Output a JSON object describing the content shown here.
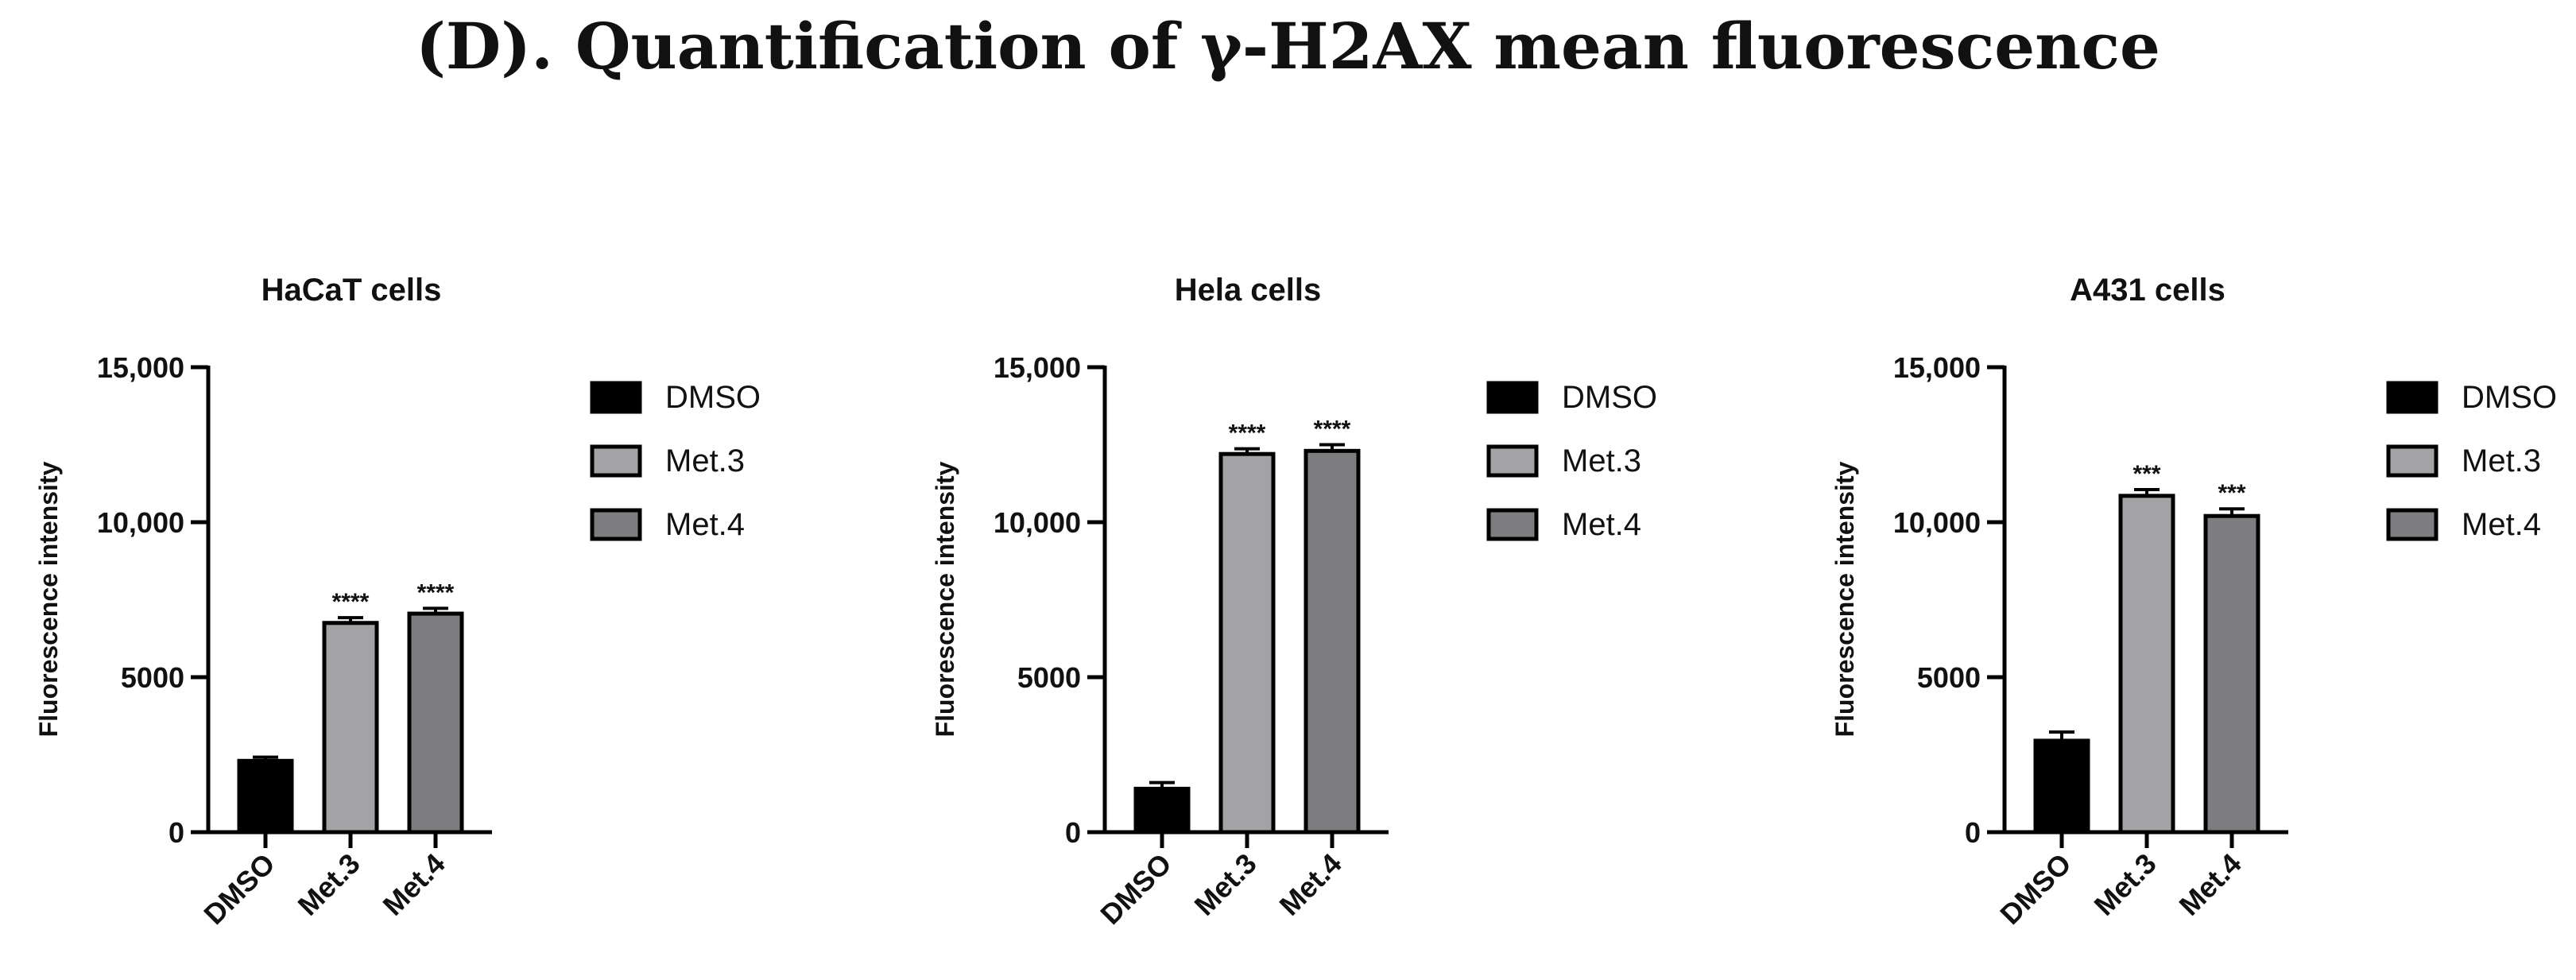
{
  "figure_title": "(D). Quantification of γ-H2AX mean fluorescence",
  "chart_data": [
    {
      "type": "bar",
      "title": "HaCaT cells",
      "ylabel": "Fluorescence intensity",
      "xlabel": "",
      "categories": [
        "DMSO",
        "Met.3",
        "Met.4"
      ],
      "values": [
        2300,
        6750,
        7050
      ],
      "errors": [
        120,
        170,
        170
      ],
      "annotations": [
        "",
        "****",
        "****"
      ],
      "colors": [
        "#000000",
        "#a3a3a5",
        "#7d7d7f"
      ],
      "ylim": [
        0,
        15000
      ],
      "yticks": [
        0,
        5000,
        10000,
        15000
      ],
      "ytick_labels": [
        "0",
        "5000",
        "10,000",
        "15,000"
      ],
      "legend": {
        "placement": "right",
        "entries": [
          "DMSO",
          "Met.3",
          "Met.4"
        ]
      },
      "grid": false
    },
    {
      "type": "bar",
      "title": "Hela cells",
      "ylabel": "Fluorescence intensity",
      "xlabel": "",
      "categories": [
        "DMSO",
        "Met.3",
        "Met.4"
      ],
      "values": [
        1400,
        12200,
        12300
      ],
      "errors": [
        200,
        170,
        200
      ],
      "annotations": [
        "",
        "****",
        "****"
      ],
      "colors": [
        "#000000",
        "#a3a3a5",
        "#7d7d7f"
      ],
      "ylim": [
        0,
        15000
      ],
      "yticks": [
        0,
        5000,
        10000,
        15000
      ],
      "ytick_labels": [
        "0",
        "5000",
        "10,000",
        "15,000"
      ],
      "legend": {
        "placement": "right",
        "entries": [
          "DMSO",
          "Met.3",
          "Met.4"
        ]
      },
      "grid": false
    },
    {
      "type": "bar",
      "title": "A431 cells",
      "ylabel": "Fluorescence intensity",
      "xlabel": "",
      "categories": [
        "DMSO",
        "Met.3",
        "Met.4"
      ],
      "values": [
        2950,
        10850,
        10200
      ],
      "errors": [
        280,
        200,
        230
      ],
      "annotations": [
        "",
        "***",
        "***"
      ],
      "colors": [
        "#000000",
        "#a3a3a5",
        "#7d7d7f"
      ],
      "ylim": [
        0,
        15000
      ],
      "yticks": [
        0,
        5000,
        10000,
        15000
      ],
      "ytick_labels": [
        "0",
        "5000",
        "10,000",
        "15,000"
      ],
      "legend": {
        "placement": "right",
        "entries": [
          "DMSO",
          "Met.3",
          "Met.4"
        ]
      },
      "grid": false
    }
  ]
}
